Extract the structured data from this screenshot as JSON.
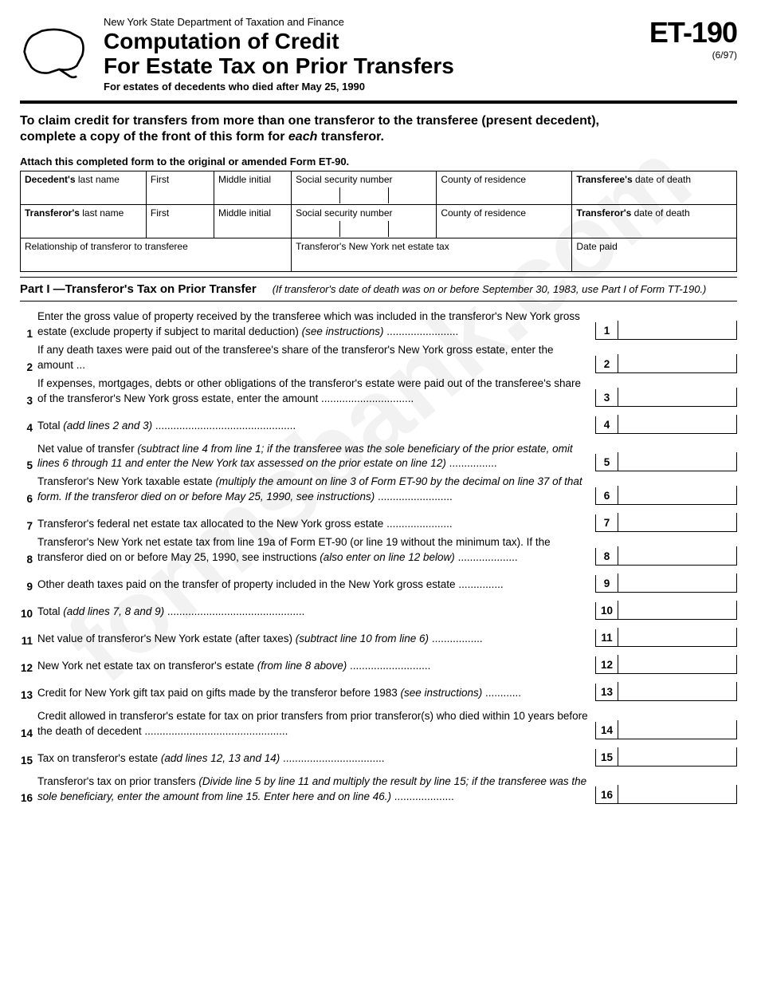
{
  "watermark": "formsbank.com",
  "header": {
    "dept": "New York State Department of Taxation and Finance",
    "title1": "Computation of Credit",
    "title2": "For Estate Tax on Prior Transfers",
    "subtitle": "For estates of decedents who died after May 25, 1990",
    "form_code": "ET-190",
    "form_date": "(6/97)"
  },
  "instruction": {
    "line1": "To claim credit for transfers from more than one transferor to the transferee (present decedent),",
    "line2a": "complete a copy of the front of this form for ",
    "line2b": "each",
    "line2c": " transferor."
  },
  "attach": "Attach this completed form to the original or amended Form ET-90.",
  "info": {
    "decedent_last": "Decedent's",
    "decedent_last2": " last name",
    "first": "First",
    "mi": "Middle initial",
    "ssn": "Social security number",
    "county": "County of residence",
    "transferee_dod": "Transferee's",
    "transferee_dod2": " date of death",
    "transferor_last": "Transferor's",
    "transferor_last2": " last name",
    "transferor_dod": "Transferor's",
    "transferor_dod2": " date of death",
    "relationship": "Relationship of transferor to transferee",
    "ny_net": "Transferor's New York net estate tax",
    "date_paid": "Date paid"
  },
  "part1": {
    "title": "Part I —Transferor's Tax on Prior Transfer",
    "note": "(If transferor's date of death was on or before September 30, 1983, use Part I of Form TT-190.)"
  },
  "lines": [
    {
      "n": "1",
      "t": "Enter the gross value of property received by the transferee which was included in the transferor's New York gross estate (exclude property if subject to marital deduction) ",
      "i": "(see instructions)",
      "box": "1"
    },
    {
      "n": "2",
      "t": "If any death taxes were paid out of the transferee's share of the transferor's New York gross estate, enter the amount ",
      "i": "",
      "box": "2"
    },
    {
      "n": "3",
      "t": "If expenses, mortgages, debts or other obligations of the transferor's estate were paid out of the transferee's share of the transferor's New York gross estate, enter the amount ",
      "i": "",
      "box": "3"
    },
    {
      "n": "4",
      "t": "Total ",
      "i": "(add lines 2 and 3)",
      "box": "4"
    },
    {
      "n": "5",
      "t": "Net value of transfer ",
      "i": "(subtract line 4 from line 1; if the transferee was the sole beneficiary of the prior estate, omit lines 6 through 11 and enter the New York tax assessed on the prior estate on line 12)",
      "box": "5"
    },
    {
      "n": "6",
      "t": "Transferor's New York taxable estate ",
      "i": "(multiply the amount on line 3 of Form ET-90 by the decimal on line 37 of that form. If the transferor died on or before May 25, 1990, see instructions)",
      "box": "6"
    },
    {
      "n": "7",
      "t": "Transferor's federal net estate tax allocated to the New York gross estate ",
      "i": "",
      "box": "7"
    },
    {
      "n": "8",
      "t": "Transferor's New York net estate tax from line 19a of Form ET-90 (or line 19 without the minimum tax). If the transferor died on or before May 25, 1990, see instructions ",
      "i": "(also enter on line 12 below)",
      "box": "8"
    },
    {
      "n": "9",
      "t": "Other death taxes paid on the transfer of property included in the New York gross estate ",
      "i": "",
      "box": "9"
    },
    {
      "n": "10",
      "t": "Total ",
      "i": "(add lines 7, 8 and 9)",
      "box": "10"
    },
    {
      "n": "11",
      "t": "Net value of transferor's New York estate (after taxes) ",
      "i": "(subtract line 10 from line 6)",
      "box": "11"
    },
    {
      "n": "12",
      "t": "New York net estate tax on transferor's estate ",
      "i": "(from line 8 above)",
      "box": "12"
    },
    {
      "n": "13",
      "t": "Credit for New York gift tax paid on gifts made by the transferor before 1983 ",
      "i": "(see instructions)",
      "box": "13"
    },
    {
      "n": "14",
      "t": "Credit allowed in transferor's estate for tax on prior transfers from prior transferor(s) who died within 10 years before the death of decedent ",
      "i": "",
      "box": "14"
    },
    {
      "n": "15",
      "t": "Tax on transferor's estate ",
      "i": "(add lines 12, 13 and 14)",
      "box": "15"
    },
    {
      "n": "16",
      "t": "Transferor's tax on prior transfers ",
      "i": "(Divide line 5 by line 11 and multiply the result by line 15; if the transferee was the sole beneficiary, enter the amount from line 15. Enter here and on line 46.)",
      "box": "16"
    }
  ]
}
